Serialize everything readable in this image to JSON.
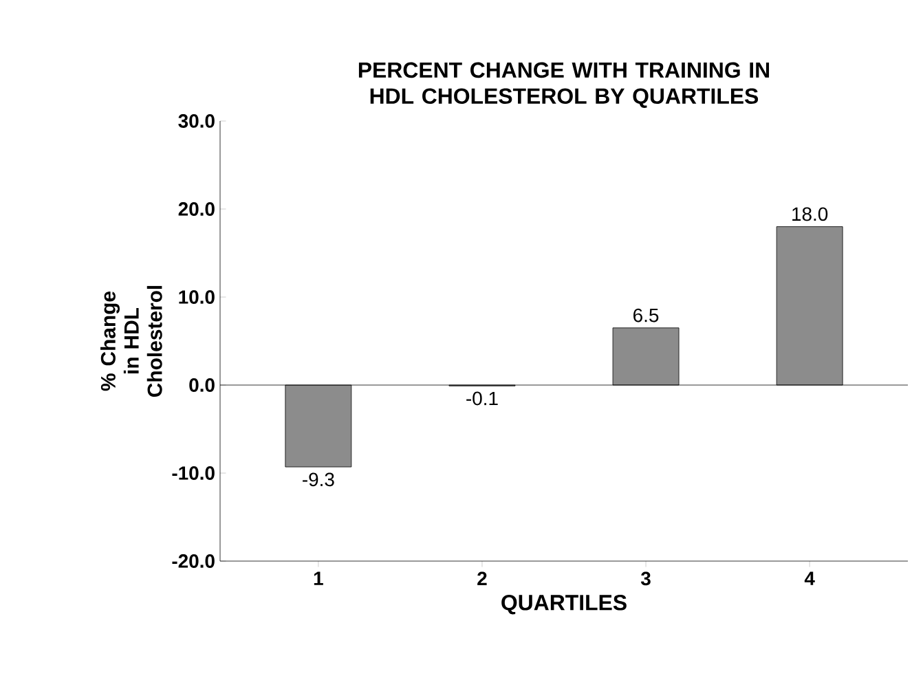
{
  "chart_data": {
    "type": "bar",
    "title": "PERCENT CHANGE WITH TRAINING IN HDL CHOLESTEROL BY QUARTILES",
    "xlabel": "QUARTILES",
    "ylabel": "% Change in HDL Cholesterol",
    "categories": [
      "1",
      "2",
      "3",
      "4"
    ],
    "values": [
      -9.3,
      -0.1,
      6.5,
      18.0
    ],
    "value_labels": [
      "-9.3",
      "-0.1",
      "6.5",
      "18.0"
    ],
    "color": "#8c8c8c",
    "ylim": [
      -20,
      30
    ],
    "yticks": [
      {
        "value": -20,
        "label": "-20.0"
      },
      {
        "value": -10,
        "label": "-10.0"
      },
      {
        "value": 0,
        "label": "0.0"
      },
      {
        "value": 10,
        "label": "10.0"
      },
      {
        "value": 20,
        "label": "20.0"
      },
      {
        "value": 30,
        "label": "30.0"
      }
    ],
    "ref_lines": [
      {
        "axis": "y",
        "value": 0,
        "color": "#000000"
      }
    ]
  }
}
